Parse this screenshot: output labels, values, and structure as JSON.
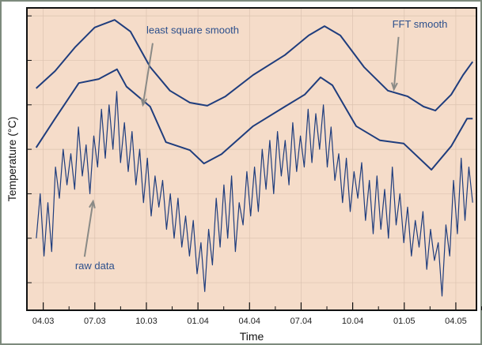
{
  "chart_data": {
    "type": "line",
    "title": "",
    "xlabel": "Time",
    "ylabel": "Temperature (°C)",
    "x_unit": "months since 04.03",
    "xlim": [
      -0.95,
      25.2
    ],
    "ylim": [
      -0.62,
      6.18
    ],
    "y_ticks": [
      0,
      1,
      2,
      3,
      4,
      5,
      6
    ],
    "y_tick_labels_shown": false,
    "x_ticks": [
      0,
      3,
      6,
      9,
      12,
      15,
      18,
      21,
      24
    ],
    "x_tick_labels": [
      "04.03",
      "07.03",
      "10.03",
      "01.04",
      "04.04",
      "07.04",
      "10.04",
      "01.05",
      "04.05"
    ],
    "grid": false,
    "background": "#f5dcc9",
    "line_color": "#1f3d7d",
    "annotation_color": "#2c4f8c",
    "arrow_color": "#8a8a86",
    "series": [
      {
        "name": "FFT smooth",
        "x": [
          -0.41,
          0.69,
          1.84,
          2.99,
          4.15,
          5.07,
          6.22,
          7.37,
          8.53,
          9.54,
          10.6,
          12.21,
          14.06,
          15.44,
          16.36,
          17.28,
          18.66,
          20.05,
          21.2,
          22.12,
          22.81,
          23.73,
          24.42,
          24.98
        ],
        "y": [
          4.37,
          4.76,
          5.29,
          5.74,
          5.91,
          5.65,
          4.85,
          4.32,
          4.05,
          3.98,
          4.19,
          4.67,
          5.12,
          5.56,
          5.77,
          5.56,
          4.85,
          4.32,
          4.19,
          3.96,
          3.87,
          4.23,
          4.67,
          4.97
        ]
      },
      {
        "name": "least square smooth",
        "x": [
          -0.41,
          0.69,
          2.07,
          3.23,
          4.29,
          4.84,
          6.22,
          7.14,
          8.53,
          9.35,
          10.37,
          12.21,
          14.06,
          15.21,
          16.13,
          16.82,
          18.2,
          19.59,
          20.97,
          22.58,
          23.73,
          24.65,
          24.98
        ],
        "y": [
          3.04,
          3.69,
          4.49,
          4.58,
          4.8,
          4.41,
          3.96,
          3.16,
          2.98,
          2.68,
          2.89,
          3.52,
          3.96,
          4.23,
          4.62,
          4.44,
          3.52,
          3.2,
          3.13,
          2.54,
          3.07,
          3.69,
          3.69
        ]
      },
      {
        "name": "raw data",
        "x_range": [
          -0.4,
          24.98
        ],
        "y": [
          1.0,
          2.0,
          0.6,
          1.8,
          0.7,
          2.6,
          1.9,
          3.0,
          2.2,
          2.9,
          2.1,
          3.5,
          2.4,
          3.1,
          2.0,
          3.3,
          2.6,
          3.9,
          2.8,
          4.0,
          3.0,
          4.3,
          2.7,
          3.6,
          2.5,
          3.4,
          2.2,
          3.0,
          1.8,
          2.8,
          1.5,
          2.4,
          1.7,
          2.3,
          1.2,
          2.0,
          1.0,
          1.9,
          0.8,
          1.5,
          0.6,
          1.4,
          0.2,
          0.9,
          -0.2,
          1.2,
          0.4,
          1.9,
          0.8,
          2.2,
          1.0,
          2.4,
          0.7,
          1.8,
          1.3,
          2.5,
          1.5,
          2.6,
          1.6,
          3.0,
          2.1,
          3.2,
          2.0,
          3.4,
          2.4,
          3.2,
          2.2,
          3.6,
          2.5,
          3.3,
          2.6,
          3.9,
          2.7,
          3.8,
          3.0,
          4.0,
          2.6,
          3.5,
          2.3,
          2.9,
          1.8,
          2.8,
          1.6,
          2.5,
          1.9,
          2.7,
          1.4,
          2.3,
          1.1,
          2.4,
          1.2,
          2.1,
          1.0,
          2.6,
          1.3,
          2.0,
          0.9,
          1.7,
          0.6,
          1.4,
          0.8,
          1.6,
          0.3,
          1.2,
          0.5,
          0.9,
          -0.3,
          1.3,
          0.6,
          2.3,
          1.1,
          2.8,
          1.4,
          2.6,
          1.8
        ]
      }
    ],
    "annotations": [
      {
        "text": "least square smooth",
        "target_series": "least square smooth",
        "label_at": [
          6.0,
          5.6
        ],
        "arrow_to": [
          5.8,
          4.0
        ]
      },
      {
        "text": "FFT smooth",
        "target_series": "FFT smooth",
        "label_at": [
          20.3,
          5.74
        ],
        "arrow_to": [
          20.4,
          4.35
        ]
      },
      {
        "text": "raw data",
        "target_series": "raw data",
        "label_at": [
          1.85,
          0.3
        ],
        "arrow_to": [
          2.9,
          1.83
        ]
      }
    ]
  }
}
